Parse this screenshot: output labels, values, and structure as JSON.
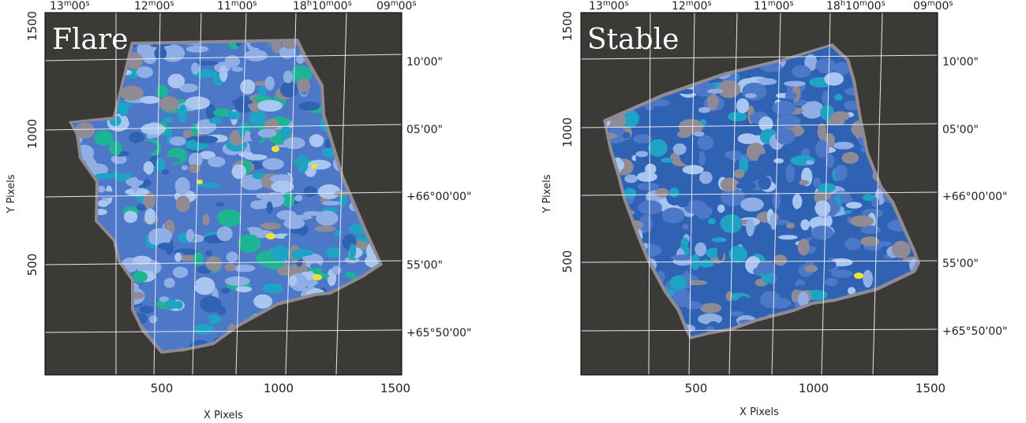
{
  "figure": {
    "panels": [
      {
        "id": "flare",
        "title": "Flare",
        "xlabel": "X Pixels",
        "ylabel": "Y Pixels",
        "xticks": [
          "500",
          "1000",
          "1500"
        ],
        "yticks": [
          "500",
          "1000",
          "1500"
        ],
        "ra_labels": [
          {
            "h": "",
            "m": "13",
            "s": "00"
          },
          {
            "h": "",
            "m": "12",
            "s": "00"
          },
          {
            "h": "",
            "m": "11",
            "s": "00"
          },
          {
            "h": "18",
            "m": "10",
            "s": "00"
          },
          {
            "h": "",
            "m": "09",
            "s": "00"
          }
        ],
        "dec_labels": [
          "10'00\"",
          "05'00\"",
          "+66°00'00\"",
          "55'00\"",
          "+65°50'00\""
        ]
      },
      {
        "id": "stable",
        "title": "Stable",
        "xlabel": "X Pixels",
        "ylabel": "Y Pixels",
        "xticks": [
          "500",
          "1000",
          "1500"
        ],
        "yticks": [
          "500",
          "1000",
          "1500"
        ],
        "ra_labels": [
          {
            "h": "",
            "m": "13",
            "s": "00"
          },
          {
            "h": "",
            "m": "12",
            "s": "00"
          },
          {
            "h": "",
            "m": "11",
            "s": "00"
          },
          {
            "h": "18",
            "m": "10",
            "s": "00"
          },
          {
            "h": "",
            "m": "09",
            "s": "00"
          }
        ],
        "dec_labels": [
          "10'00\"",
          "05'00\"",
          "+66°00'00\"",
          "55'00\"",
          "+65°50'00\""
        ]
      }
    ],
    "colors": {
      "background": "#3b3a36",
      "grid": "#e8e8e8",
      "edge": "#8f8a93",
      "levels": [
        "#2f62b3",
        "#4d78c7",
        "#8faee6",
        "#a8c6f0",
        "#1fa3c4",
        "#1cb493",
        "#5fc66a",
        "#e7e33b"
      ]
    }
  }
}
